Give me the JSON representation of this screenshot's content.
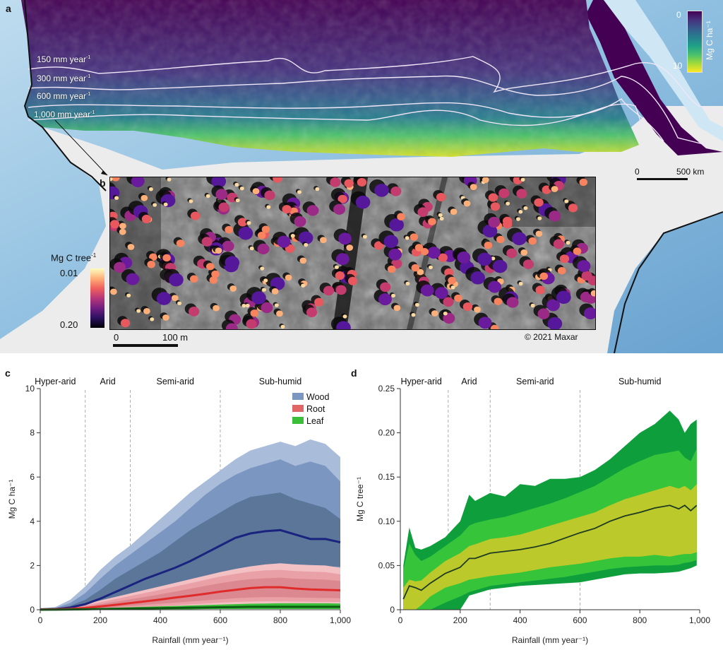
{
  "panel_a": {
    "letter": "a",
    "isohyets": [
      {
        "label": "150 mm year",
        "sup": "-1"
      },
      {
        "label": "300 mm year",
        "sup": "-1"
      },
      {
        "label": "600 mm year",
        "sup": "-1"
      },
      {
        "label": "1,000 mm year",
        "sup": "-1"
      }
    ],
    "colorbar": {
      "min_label": "0",
      "max_label": "10",
      "title": "Mg C ha⁻¹",
      "colormap": "viridis",
      "colors": [
        "#440154",
        "#46327e",
        "#365c8d",
        "#277f8e",
        "#1fa187",
        "#4ac16d",
        "#a0da39",
        "#fde725"
      ]
    },
    "scale_bar": {
      "start": "0",
      "end": "500 km"
    },
    "colors": {
      "ocean": "#8fbfe0",
      "ocean_deep": "#6fa6d3",
      "land": "#ececec",
      "sahara_carbon_low": "#440154"
    }
  },
  "panel_b": {
    "letter": "b",
    "colorbar": {
      "title": "Mg C tree",
      "title_sup": "-1",
      "top_label": "0.01",
      "bottom_label": "0.20",
      "colormap": "magma"
    },
    "scale_bar": {
      "start": "0",
      "end": "100 m"
    },
    "credit": "©  2021  Maxar"
  },
  "chart_data": [
    {
      "panel": "c",
      "type": "area",
      "title": "",
      "xlabel": "Rainfall (mm year⁻¹)",
      "ylabel": "Mg C ha⁻¹",
      "xlim": [
        0,
        1000
      ],
      "ylim": [
        0,
        10
      ],
      "xticks": [
        0,
        200,
        400,
        600,
        800,
        1000
      ],
      "xtick_labels": [
        "0",
        "200",
        "400",
        "600",
        "800",
        "1,000"
      ],
      "yticks": [
        0,
        2,
        4,
        6,
        8,
        10
      ],
      "ytick_labels": [
        "0",
        "2",
        "4",
        "6",
        "8",
        "10"
      ],
      "zones": [
        {
          "label": "Hyper-arid",
          "x_center": 50
        },
        {
          "label": "Arid",
          "x_center": 225
        },
        {
          "label": "Semi-arid",
          "x_center": 450
        },
        {
          "label": "Sub-humid",
          "x_center": 800
        }
      ],
      "zone_boundaries": [
        150,
        300,
        600
      ],
      "legend": [
        {
          "label": "Wood",
          "color": "#7b96c0"
        },
        {
          "label": "Root",
          "color": "#e06666"
        },
        {
          "label": "Leaf",
          "color": "#3bbf3b"
        }
      ],
      "x": [
        0,
        50,
        100,
        150,
        200,
        250,
        300,
        350,
        400,
        450,
        500,
        550,
        600,
        650,
        700,
        750,
        800,
        850,
        900,
        950,
        1000
      ],
      "series": [
        {
          "name": "Wood",
          "median": [
            0.02,
            0.03,
            0.1,
            0.25,
            0.5,
            0.8,
            1.1,
            1.4,
            1.65,
            1.9,
            2.2,
            2.55,
            2.9,
            3.25,
            3.45,
            3.55,
            3.6,
            3.4,
            3.2,
            3.2,
            3.05
          ],
          "band_inner": {
            "low": [
              0,
              0.01,
              0.05,
              0.12,
              0.28,
              0.45,
              0.62,
              0.8,
              0.95,
              1.1,
              1.3,
              1.5,
              1.7,
              1.85,
              1.95,
              2.0,
              2.05,
              2.0,
              2.0,
              1.95,
              1.95
            ],
            "high": [
              0.03,
              0.05,
              0.18,
              0.45,
              0.9,
              1.4,
              1.8,
              2.2,
              2.6,
              3.1,
              3.6,
              4.0,
              4.4,
              4.8,
              5.1,
              5.2,
              5.3,
              5.0,
              4.8,
              4.6,
              4.1
            ]
          },
          "band_mid": {
            "low": [
              0,
              0,
              0.02,
              0.06,
              0.15,
              0.28,
              0.4,
              0.55,
              0.68,
              0.8,
              0.95,
              1.1,
              1.25,
              1.35,
              1.45,
              1.5,
              1.5,
              1.5,
              1.5,
              1.5,
              1.45
            ],
            "high": [
              0.04,
              0.08,
              0.3,
              0.75,
              1.4,
              2.0,
              2.5,
              3.0,
              3.5,
              4.0,
              4.6,
              5.2,
              5.7,
              6.1,
              6.4,
              6.6,
              6.8,
              6.5,
              6.7,
              6.5,
              5.8
            ]
          },
          "band_outer": {
            "low": [
              0,
              0,
              0.01,
              0.03,
              0.08,
              0.15,
              0.25,
              0.35,
              0.45,
              0.55,
              0.65,
              0.75,
              0.85,
              0.95,
              1.0,
              1.05,
              1.05,
              1.05,
              1.05,
              1.05,
              1.0
            ],
            "high": [
              0.05,
              0.12,
              0.45,
              1.05,
              1.8,
              2.4,
              2.9,
              3.5,
              4.1,
              4.7,
              5.3,
              5.8,
              6.3,
              6.8,
              7.2,
              7.4,
              7.6,
              7.4,
              7.7,
              7.5,
              6.9
            ]
          }
        },
        {
          "name": "Root",
          "median": [
            0.01,
            0.02,
            0.04,
            0.08,
            0.15,
            0.22,
            0.3,
            0.38,
            0.46,
            0.55,
            0.63,
            0.72,
            0.82,
            0.9,
            0.98,
            1.02,
            1.02,
            0.96,
            0.92,
            0.9,
            0.88
          ],
          "band_inner": {
            "low": [
              0,
              0.01,
              0.02,
              0.04,
              0.08,
              0.12,
              0.17,
              0.22,
              0.27,
              0.32,
              0.37,
              0.42,
              0.47,
              0.52,
              0.55,
              0.57,
              0.57,
              0.55,
              0.54,
              0.53,
              0.52
            ],
            "high": [
              0.02,
              0.04,
              0.08,
              0.14,
              0.25,
              0.36,
              0.47,
              0.58,
              0.7,
              0.82,
              0.95,
              1.08,
              1.2,
              1.3,
              1.38,
              1.42,
              1.45,
              1.4,
              1.38,
              1.36,
              1.3
            ]
          },
          "band_mid": {
            "low": [
              0,
              0,
              0.01,
              0.02,
              0.04,
              0.07,
              0.1,
              0.13,
              0.16,
              0.2,
              0.24,
              0.28,
              0.32,
              0.35,
              0.37,
              0.38,
              0.38,
              0.37,
              0.36,
              0.35,
              0.35
            ],
            "high": [
              0.03,
              0.06,
              0.12,
              0.2,
              0.34,
              0.48,
              0.62,
              0.76,
              0.9,
              1.05,
              1.2,
              1.35,
              1.5,
              1.62,
              1.72,
              1.78,
              1.8,
              1.75,
              1.72,
              1.7,
              1.6
            ]
          },
          "band_outer": {
            "low": [
              0,
              0,
              0,
              0.01,
              0.02,
              0.03,
              0.05,
              0.07,
              0.09,
              0.11,
              0.13,
              0.15,
              0.17,
              0.19,
              0.2,
              0.21,
              0.21,
              0.2,
              0.2,
              0.2,
              0.2
            ],
            "high": [
              0.04,
              0.08,
              0.15,
              0.26,
              0.42,
              0.58,
              0.74,
              0.9,
              1.06,
              1.22,
              1.38,
              1.54,
              1.7,
              1.84,
              1.96,
              2.05,
              2.1,
              2.05,
              2.02,
              2.0,
              1.9
            ]
          }
        },
        {
          "name": "Leaf",
          "median": [
            0,
            0.005,
            0.01,
            0.02,
            0.03,
            0.04,
            0.05,
            0.06,
            0.07,
            0.08,
            0.09,
            0.1,
            0.11,
            0.12,
            0.13,
            0.13,
            0.13,
            0.13,
            0.13,
            0.13,
            0.13
          ],
          "band_outer": {
            "low": [
              0,
              0,
              0,
              0,
              0,
              0.01,
              0.01,
              0.01,
              0.02,
              0.02,
              0.02,
              0.03,
              0.03,
              0.03,
              0.03,
              0.03,
              0.03,
              0.03,
              0.03,
              0.03,
              0.03
            ],
            "high": [
              0.01,
              0.02,
              0.03,
              0.05,
              0.07,
              0.09,
              0.11,
              0.13,
              0.15,
              0.17,
              0.19,
              0.21,
              0.23,
              0.25,
              0.27,
              0.28,
              0.29,
              0.29,
              0.29,
              0.29,
              0.28
            ]
          }
        }
      ]
    },
    {
      "panel": "d",
      "type": "area",
      "title": "",
      "xlabel": "Rainfall (mm year⁻¹)",
      "ylabel": "Mg C tree⁻¹",
      "xlim": [
        0,
        1000
      ],
      "ylim": [
        0,
        0.25
      ],
      "xticks": [
        0,
        200,
        400,
        600,
        800,
        1000
      ],
      "xtick_labels": [
        "0",
        "200",
        "400",
        "600",
        "800",
        "1,000"
      ],
      "yticks": [
        0,
        0.05,
        0.1,
        0.15,
        0.2,
        0.25
      ],
      "ytick_labels": [
        "0",
        "0.05",
        "0.10",
        "0.15",
        "0.20",
        "0.25"
      ],
      "zones": [
        {
          "label": "Hyper-arid",
          "x_center": 70
        },
        {
          "label": "Arid",
          "x_center": 230
        },
        {
          "label": "Semi-arid",
          "x_center": 450
        },
        {
          "label": "Sub-humid",
          "x_center": 800
        }
      ],
      "zone_boundaries": [
        160,
        300,
        600
      ],
      "band_colors": {
        "outer": "#0f9e3c",
        "mid": "#35c43a",
        "inner": "#bcc92a",
        "median": "#1d3a22"
      },
      "x": [
        10,
        30,
        50,
        70,
        100,
        150,
        200,
        230,
        250,
        300,
        350,
        400,
        450,
        500,
        550,
        600,
        650,
        700,
        750,
        800,
        850,
        900,
        930,
        950,
        970,
        990
      ],
      "median": [
        0.012,
        0.027,
        0.025,
        0.022,
        0.03,
        0.041,
        0.048,
        0.058,
        0.058,
        0.064,
        0.066,
        0.068,
        0.071,
        0.075,
        0.081,
        0.087,
        0.092,
        0.1,
        0.106,
        0.11,
        0.115,
        0.118,
        0.114,
        0.118,
        0.112,
        0.118
      ],
      "band_inner": {
        "low": [
          0,
          0,
          0,
          0.005,
          0.015,
          0.025,
          0.03,
          0.034,
          0.035,
          0.038,
          0.04,
          0.042,
          0.045,
          0.048,
          0.05,
          0.052,
          0.055,
          0.058,
          0.06,
          0.06,
          0.062,
          0.06,
          0.062,
          0.063,
          0.063,
          0.065
        ],
        "high": [
          0.025,
          0.034,
          0.032,
          0.033,
          0.042,
          0.055,
          0.064,
          0.072,
          0.074,
          0.08,
          0.082,
          0.085,
          0.09,
          0.095,
          0.1,
          0.105,
          0.11,
          0.118,
          0.125,
          0.13,
          0.135,
          0.14,
          0.137,
          0.14,
          0.135,
          0.142
        ]
      },
      "band_mid": {
        "low": [
          0,
          0,
          0,
          0,
          0,
          0.008,
          0.015,
          0.02,
          0.022,
          0.027,
          0.029,
          0.031,
          0.033,
          0.035,
          0.037,
          0.04,
          0.043,
          0.046,
          0.048,
          0.049,
          0.05,
          0.05,
          0.051,
          0.053,
          0.054,
          0.056
        ],
        "high": [
          0.045,
          0.075,
          0.062,
          0.055,
          0.06,
          0.072,
          0.084,
          0.095,
          0.098,
          0.102,
          0.105,
          0.11,
          0.115,
          0.12,
          0.126,
          0.133,
          0.14,
          0.15,
          0.16,
          0.168,
          0.175,
          0.178,
          0.18,
          0.172,
          0.168,
          0.182
        ]
      },
      "band_outer": {
        "low": [
          0,
          0,
          0,
          0,
          0,
          0,
          0,
          0.016,
          0.018,
          0.023,
          0.025,
          0.027,
          0.028,
          0.029,
          0.03,
          0.031,
          0.034,
          0.037,
          0.04,
          0.041,
          0.041,
          0.042,
          0.043,
          0.045,
          0.047,
          0.05
        ],
        "high": [
          0.05,
          0.093,
          0.07,
          0.068,
          0.072,
          0.082,
          0.1,
          0.13,
          0.123,
          0.132,
          0.128,
          0.142,
          0.14,
          0.148,
          0.148,
          0.15,
          0.158,
          0.17,
          0.185,
          0.2,
          0.21,
          0.225,
          0.215,
          0.2,
          0.21,
          0.215
        ]
      }
    }
  ]
}
